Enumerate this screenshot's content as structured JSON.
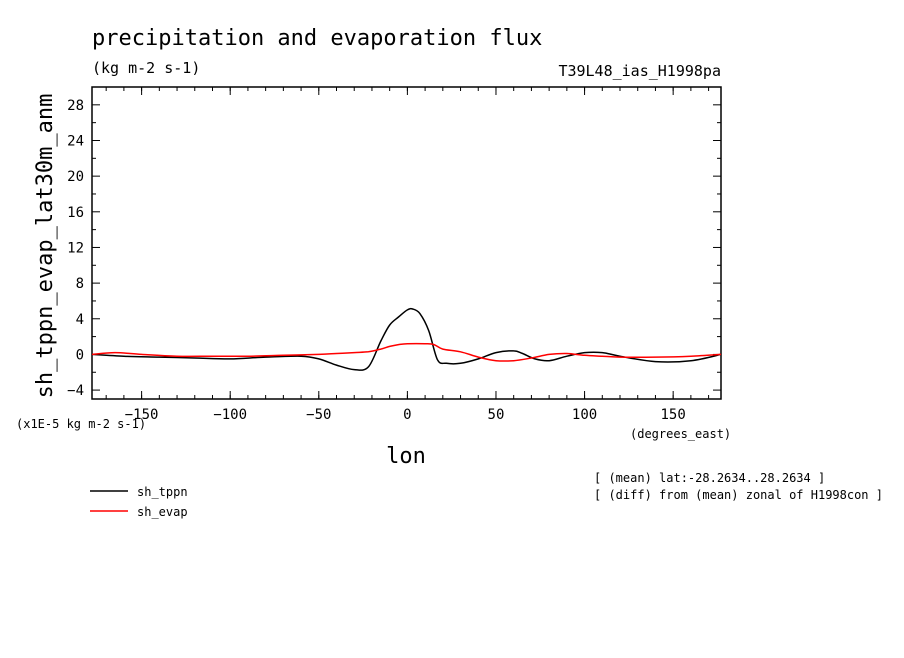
{
  "chart_data": {
    "type": "line",
    "title": "precipitation and evaporation flux",
    "units": "(kg m-2 s-1)",
    "run_label": "T39L48_ias_H1998pa",
    "ylabel": "sh_tppn_evap_lat30m_anm",
    "xlabel": "lon",
    "x_units": "(degrees_east)",
    "y_scale_label": "(x1E-5 kg m-2 s-1)",
    "xlim": [
      -178,
      177
    ],
    "ylim": [
      -5,
      30
    ],
    "x_ticks": [
      -150,
      -100,
      -50,
      0,
      50,
      100,
      150
    ],
    "y_ticks": [
      -4,
      0,
      4,
      8,
      12,
      16,
      20,
      24,
      28
    ],
    "notes": [
      "[ (mean) lat:-28.2634..28.2634 ]",
      "[ (diff) from (mean) zonal of H1998con ]"
    ],
    "legend_position": "bottom-left",
    "series": [
      {
        "name": "sh_tppn",
        "color": "#000000",
        "x": [
          -178,
          -160,
          -140,
          -120,
          -100,
          -80,
          -60,
          -50,
          -40,
          -30,
          -22,
          -15,
          -10,
          -5,
          0,
          3,
          7,
          12,
          17,
          22,
          30,
          40,
          50,
          60,
          65,
          72,
          80,
          90,
          100,
          110,
          120,
          140,
          160,
          177
        ],
        "y": [
          0,
          -0.2,
          -0.3,
          -0.4,
          -0.5,
          -0.3,
          -0.2,
          -0.5,
          -1.2,
          -1.7,
          -1.4,
          1.5,
          3.3,
          4.2,
          5.0,
          5.1,
          4.6,
          2.7,
          -0.6,
          -1.0,
          -1.0,
          -0.5,
          0.2,
          0.4,
          0.1,
          -0.5,
          -0.7,
          -0.2,
          0.2,
          0.2,
          -0.2,
          -0.8,
          -0.7,
          0
        ]
      },
      {
        "name": "sh_evap",
        "color": "#ff0000",
        "x": [
          -178,
          -165,
          -150,
          -130,
          -110,
          -90,
          -70,
          -50,
          -40,
          -30,
          -22,
          -15,
          -10,
          -5,
          0,
          10,
          15,
          20,
          30,
          40,
          50,
          60,
          70,
          80,
          90,
          100,
          110,
          120,
          140,
          160,
          177
        ],
        "y": [
          0,
          0.2,
          0.0,
          -0.2,
          -0.2,
          -0.2,
          -0.1,
          0.0,
          0.1,
          0.2,
          0.3,
          0.6,
          0.9,
          1.1,
          1.2,
          1.2,
          1.1,
          0.6,
          0.3,
          -0.3,
          -0.7,
          -0.7,
          -0.4,
          0.0,
          0.1,
          -0.1,
          -0.2,
          -0.3,
          -0.3,
          -0.2,
          0
        ]
      }
    ]
  }
}
